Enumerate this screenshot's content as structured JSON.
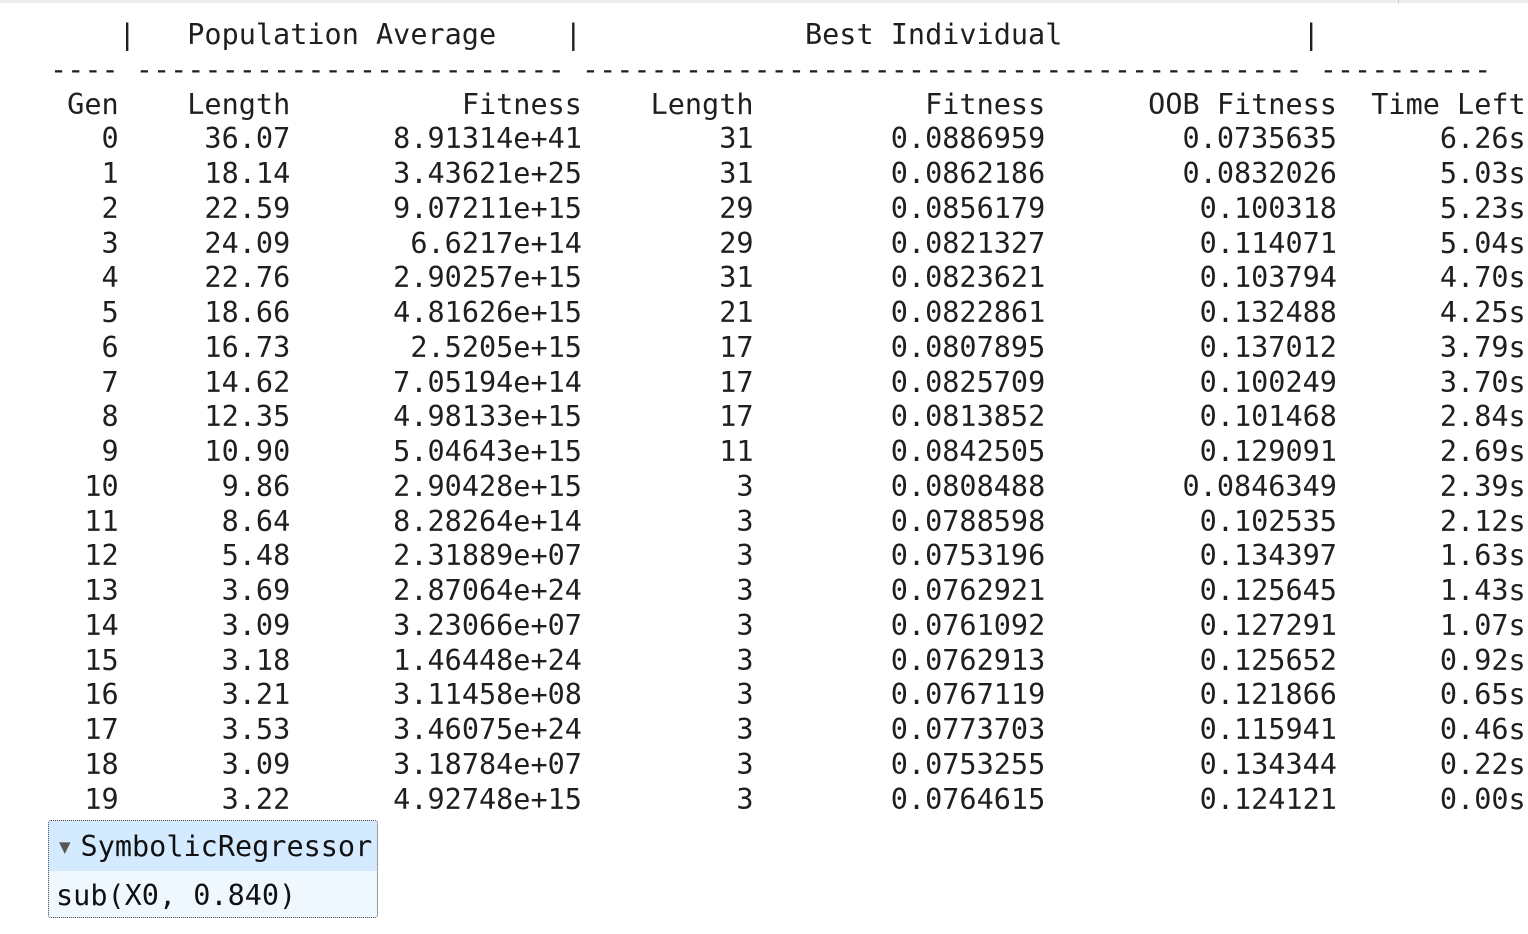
{
  "log": {
    "header_line": "    |   Population Average    |             Best Individual              |",
    "separator_line": "---- ------------------------- ------------------------------------------ ----------",
    "columns": [
      "Gen",
      "Length",
      "Fitness",
      "Length",
      "Fitness",
      "OOB Fitness",
      "Time Left"
    ],
    "rows": [
      [
        "0",
        "36.07",
        "8.91314e+41",
        "31",
        "0.0886959",
        "0.0735635",
        "6.26s"
      ],
      [
        "1",
        "18.14",
        "3.43621e+25",
        "31",
        "0.0862186",
        "0.0832026",
        "5.03s"
      ],
      [
        "2",
        "22.59",
        "9.07211e+15",
        "29",
        "0.0856179",
        "0.100318",
        "5.23s"
      ],
      [
        "3",
        "24.09",
        "6.6217e+14",
        "29",
        "0.0821327",
        "0.114071",
        "5.04s"
      ],
      [
        "4",
        "22.76",
        "2.90257e+15",
        "31",
        "0.0823621",
        "0.103794",
        "4.70s"
      ],
      [
        "5",
        "18.66",
        "4.81626e+15",
        "21",
        "0.0822861",
        "0.132488",
        "4.25s"
      ],
      [
        "6",
        "16.73",
        "2.5205e+15",
        "17",
        "0.0807895",
        "0.137012",
        "3.79s"
      ],
      [
        "7",
        "14.62",
        "7.05194e+14",
        "17",
        "0.0825709",
        "0.100249",
        "3.70s"
      ],
      [
        "8",
        "12.35",
        "4.98133e+15",
        "17",
        "0.0813852",
        "0.101468",
        "2.84s"
      ],
      [
        "9",
        "10.90",
        "5.04643e+15",
        "11",
        "0.0842505",
        "0.129091",
        "2.69s"
      ],
      [
        "10",
        "9.86",
        "2.90428e+15",
        "3",
        "0.0808488",
        "0.0846349",
        "2.39s"
      ],
      [
        "11",
        "8.64",
        "8.28264e+14",
        "3",
        "0.0788598",
        "0.102535",
        "2.12s"
      ],
      [
        "12",
        "5.48",
        "2.31889e+07",
        "3",
        "0.0753196",
        "0.134397",
        "1.63s"
      ],
      [
        "13",
        "3.69",
        "2.87064e+24",
        "3",
        "0.0762921",
        "0.125645",
        "1.43s"
      ],
      [
        "14",
        "3.09",
        "3.23066e+07",
        "3",
        "0.0761092",
        "0.127291",
        "1.07s"
      ],
      [
        "15",
        "3.18",
        "1.46448e+24",
        "3",
        "0.0762913",
        "0.125652",
        "0.92s"
      ],
      [
        "16",
        "3.21",
        "3.11458e+08",
        "3",
        "0.0767119",
        "0.121866",
        "0.65s"
      ],
      [
        "17",
        "3.53",
        "3.46075e+24",
        "3",
        "0.0773703",
        "0.115941",
        "0.46s"
      ],
      [
        "18",
        "3.09",
        "3.18784e+07",
        "3",
        "0.0753255",
        "0.134344",
        "0.22s"
      ],
      [
        "19",
        "3.22",
        "4.92748e+15",
        "3",
        "0.0764615",
        "0.124121",
        "0.00s"
      ]
    ]
  },
  "estimator": {
    "caret_icon": "triangle-down",
    "caret_glyph": "▼",
    "name": "SymbolicRegressor",
    "repr": "sub(X0, 0.840)"
  }
}
